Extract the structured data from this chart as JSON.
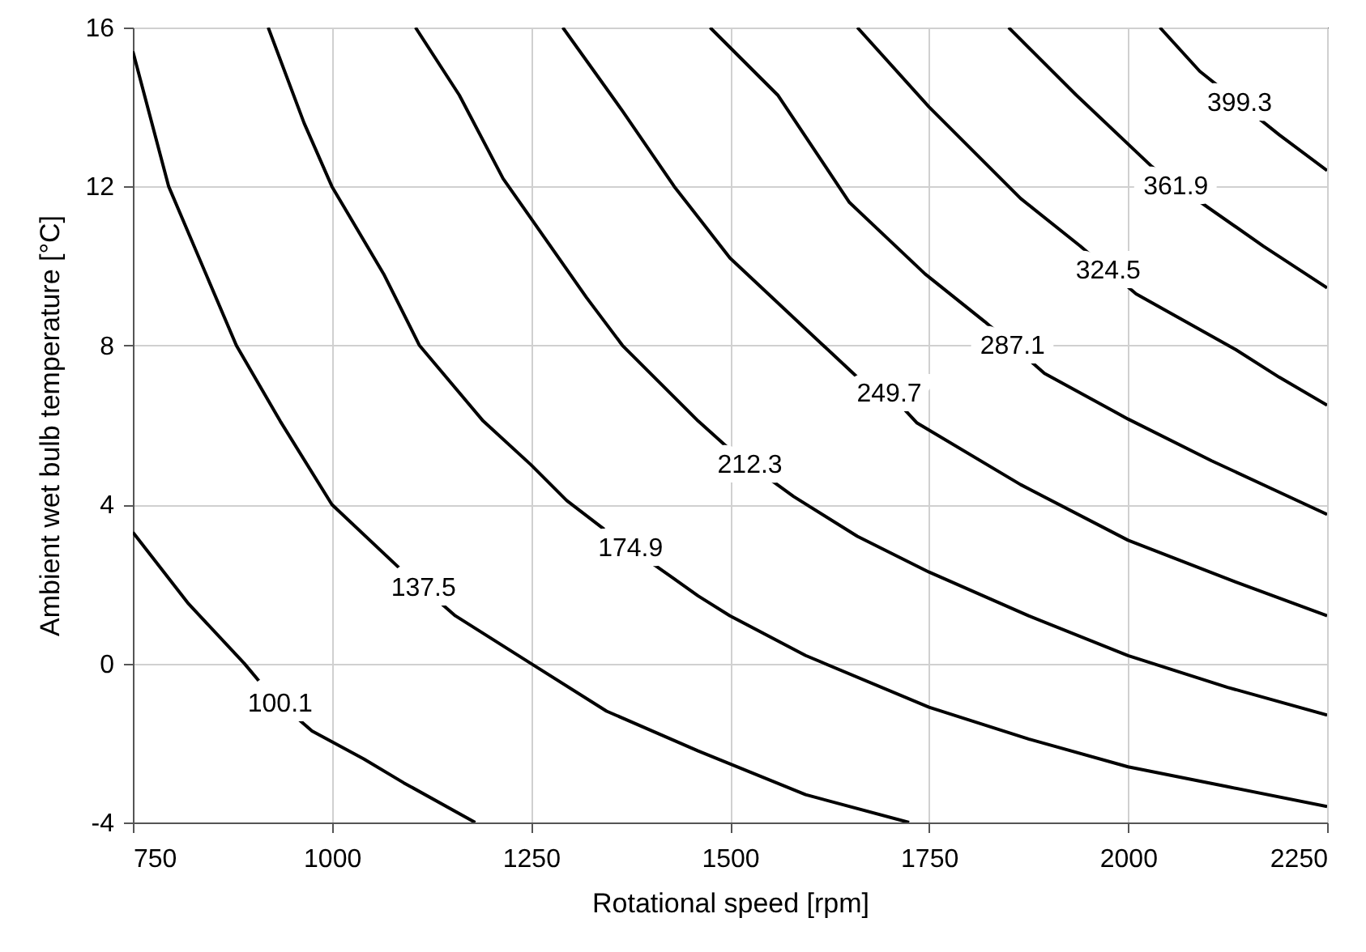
{
  "chart_data": {
    "type": "line",
    "xlabel": "Rotational speed [rpm]",
    "ylabel": "Ambient wet bulb temperature [°C]",
    "xlim": [
      750,
      2250
    ],
    "xticks": [
      750,
      1000,
      1250,
      1500,
      1750,
      2000,
      2250
    ],
    "ylim": [
      -4,
      16
    ],
    "yticks": [
      -4,
      0,
      4,
      8,
      12,
      16
    ],
    "grid": true,
    "series": [
      {
        "name": "100.1",
        "color": "#000000",
        "x": [
          750,
          820,
          890,
          915,
          935,
          975,
          1040,
          1090,
          1180
        ],
        "values": [
          3.3,
          1.5,
          0.0,
          -0.6,
          -1.0,
          -1.7,
          -2.4,
          -3.0,
          -4.0
        ]
      },
      {
        "name": "137.5",
        "color": "#000000",
        "x": [
          750,
          795,
          880,
          935,
          1000,
          1090,
          1115,
          1155,
          1250,
          1345,
          1460,
          1595,
          1725
        ],
        "values": [
          15.4,
          12.0,
          8.0,
          6.1,
          4.0,
          2.3,
          1.9,
          1.2,
          0.0,
          -1.2,
          -2.2,
          -3.3,
          -4.0
        ]
      },
      {
        "name": "174.9",
        "color": "#000000",
        "x": [
          920,
          965,
          1000,
          1065,
          1110,
          1190,
          1250,
          1295,
          1360,
          1375,
          1425,
          1460,
          1500,
          1595,
          1750,
          1875,
          2000,
          2125,
          2250
        ],
        "values": [
          16.0,
          13.6,
          12.0,
          9.8,
          8.0,
          6.1,
          5.0,
          4.1,
          3.1,
          2.9,
          2.2,
          1.7,
          1.2,
          0.2,
          -1.1,
          -1.9,
          -2.6,
          -3.1,
          -3.6
        ]
      },
      {
        "name": "212.3",
        "color": "#000000",
        "x": [
          1105,
          1160,
          1215,
          1320,
          1365,
          1460,
          1510,
          1525,
          1580,
          1660,
          1750,
          1875,
          2000,
          2125,
          2250
        ],
        "values": [
          16.0,
          14.3,
          12.2,
          9.2,
          8.0,
          6.1,
          5.2,
          5.0,
          4.2,
          3.2,
          2.3,
          1.2,
          0.2,
          -0.6,
          -1.3
        ]
      },
      {
        "name": "249.7",
        "color": "#000000",
        "x": [
          1290,
          1365,
          1430,
          1500,
          1660,
          1700,
          1735,
          1865,
          2000,
          2135,
          2250
        ],
        "values": [
          16.0,
          13.9,
          12.0,
          10.2,
          7.2,
          6.8,
          6.05,
          4.5,
          3.1,
          2.05,
          1.2
        ]
      },
      {
        "name": "287.1",
        "color": "#000000",
        "x": [
          1475,
          1560,
          1650,
          1745,
          1820,
          1855,
          1895,
          2000,
          2105,
          2180,
          2250
        ],
        "values": [
          16.0,
          14.3,
          11.6,
          9.8,
          8.6,
          8.0,
          7.3,
          6.15,
          5.1,
          4.4,
          3.75
        ]
      },
      {
        "name": "324.5",
        "color": "#000000",
        "x": [
          1660,
          1750,
          1865,
          1940,
          1975,
          2010,
          2135,
          2190,
          2250
        ],
        "values": [
          16.0,
          14.0,
          11.7,
          10.5,
          9.9,
          9.3,
          7.9,
          7.2,
          6.5
        ]
      },
      {
        "name": "361.9",
        "color": "#000000",
        "x": [
          1850,
          1935,
          2030,
          2060,
          2095,
          2170,
          2250
        ],
        "values": [
          16.0,
          14.3,
          12.5,
          12.0,
          11.55,
          10.5,
          9.45
        ]
      },
      {
        "name": "399.3",
        "color": "#000000",
        "x": [
          2040,
          2090,
          2140,
          2190,
          2250
        ],
        "values": [
          16.0,
          14.9,
          14.1,
          13.3,
          12.4
        ]
      }
    ]
  }
}
